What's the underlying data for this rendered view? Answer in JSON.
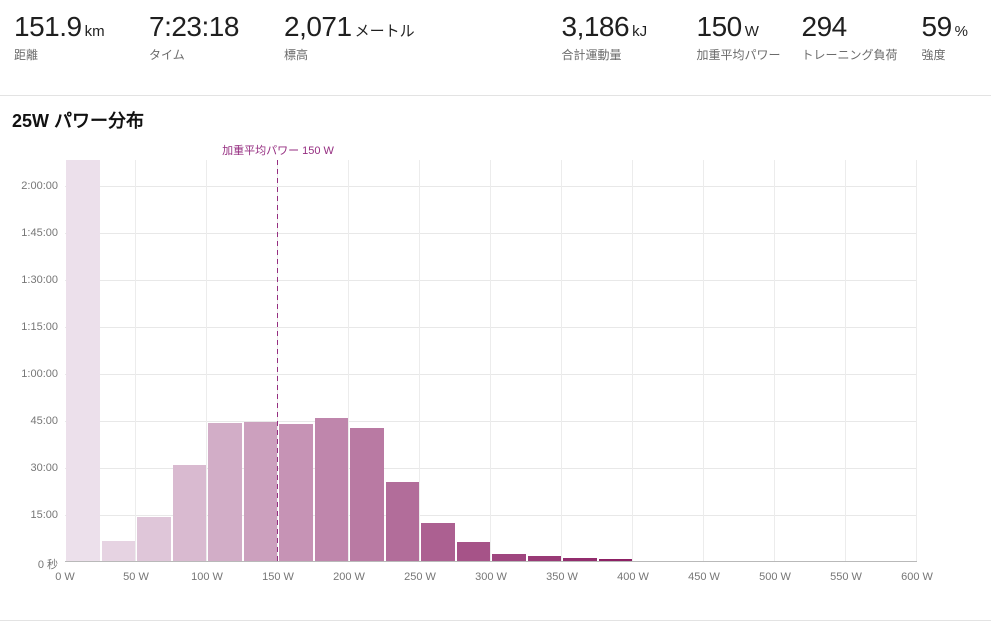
{
  "stats": [
    {
      "value": "151.9",
      "unit": "km",
      "label": "距離"
    },
    {
      "value": "7:23:18",
      "unit": "",
      "label": "タイム"
    },
    {
      "value": "2,071",
      "unit": "メートル",
      "label": "標高"
    },
    {
      "value": "3,186",
      "unit": "kJ",
      "label": "合計運動量"
    },
    {
      "value": "150",
      "unit": "W",
      "label": "加重平均パワー"
    },
    {
      "value": "294",
      "unit": "",
      "label": "トレーニング負荷"
    },
    {
      "value": "59",
      "unit": "%",
      "label": "強度"
    }
  ],
  "section": {
    "title": "25W パワー分布"
  },
  "chart_data": {
    "type": "bar",
    "title": "25W パワー分布",
    "x_unit": "W",
    "bin_width_watts": 25,
    "x_range_watts": [
      0,
      600
    ],
    "x_ticks": [
      "0 W",
      "50 W",
      "100 W",
      "150 W",
      "200 W",
      "250 W",
      "300 W",
      "350 W",
      "400 W",
      "450 W",
      "500 W",
      "550 W",
      "600 W"
    ],
    "y_ticks": [
      {
        "seconds": 0,
        "label": "0 秒"
      },
      {
        "seconds": 900,
        "label": "15:00"
      },
      {
        "seconds": 1800,
        "label": "30:00"
      },
      {
        "seconds": 2700,
        "label": "45:00"
      },
      {
        "seconds": 3600,
        "label": "1:00:00"
      },
      {
        "seconds": 4500,
        "label": "1:15:00"
      },
      {
        "seconds": 5400,
        "label": "1:30:00"
      },
      {
        "seconds": 6300,
        "label": "1:45:00"
      },
      {
        "seconds": 7200,
        "label": "2:00:00"
      }
    ],
    "y_max_seconds": 7700,
    "grid": true,
    "bins": [
      {
        "watts_from": 0,
        "watts_to": 25,
        "seconds": 7700,
        "time": "2:08:20",
        "clipped": true
      },
      {
        "watts_from": 25,
        "watts_to": 50,
        "seconds": 390,
        "time": "6:30"
      },
      {
        "watts_from": 50,
        "watts_to": 75,
        "seconds": 850,
        "time": "14:10"
      },
      {
        "watts_from": 75,
        "watts_to": 100,
        "seconds": 1840,
        "time": "30:40"
      },
      {
        "watts_from": 100,
        "watts_to": 125,
        "seconds": 2650,
        "time": "44:10"
      },
      {
        "watts_from": 125,
        "watts_to": 150,
        "seconds": 2665,
        "time": "44:25"
      },
      {
        "watts_from": 150,
        "watts_to": 175,
        "seconds": 2615,
        "time": "43:35"
      },
      {
        "watts_from": 175,
        "watts_to": 200,
        "seconds": 2735,
        "time": "45:35"
      },
      {
        "watts_from": 200,
        "watts_to": 225,
        "seconds": 2545,
        "time": "42:25"
      },
      {
        "watts_from": 225,
        "watts_to": 250,
        "seconds": 1515,
        "time": "25:15"
      },
      {
        "watts_from": 250,
        "watts_to": 275,
        "seconds": 730,
        "time": "12:10"
      },
      {
        "watts_from": 275,
        "watts_to": 300,
        "seconds": 365,
        "time": "6:05"
      },
      {
        "watts_from": 300,
        "watts_to": 325,
        "seconds": 135,
        "time": "2:15"
      },
      {
        "watts_from": 325,
        "watts_to": 350,
        "seconds": 90,
        "time": "1:30"
      },
      {
        "watts_from": 350,
        "watts_to": 375,
        "seconds": 55,
        "time": "0:55"
      },
      {
        "watts_from": 375,
        "watts_to": 400,
        "seconds": 35,
        "time": "0:35"
      }
    ],
    "bar_colors": [
      "#ece0eb",
      "#e6d3e2",
      "#dfc6d9",
      "#d9bad0",
      "#d2adc7",
      "#cca0be",
      "#c693b5",
      "#bf86ac",
      "#b97aa3",
      "#b26d9a",
      "#ac6091",
      "#a65388",
      "#9f467f",
      "#993a76",
      "#922d6d",
      "#8c2064"
    ],
    "marker": {
      "label": "加重平均パワー 150 W",
      "watts": 150,
      "color": "#952d80"
    },
    "legend_position": "none"
  },
  "colors": {
    "marker": "#952d80",
    "gridline": "#e8e8e8",
    "axis_line": "#b9b9b9",
    "axis_text": "#767676",
    "divider": "#e3e3e3",
    "background": "#ffffff"
  }
}
